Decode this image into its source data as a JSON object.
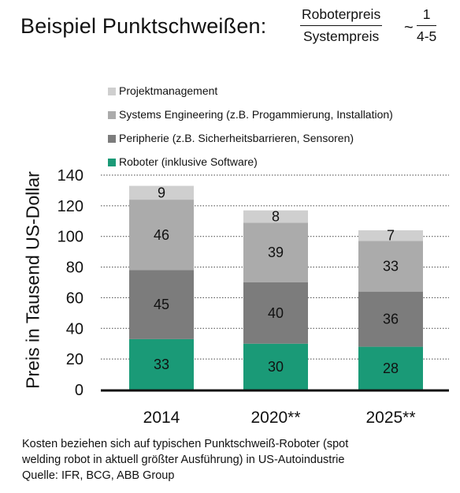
{
  "header": {
    "title": "Beispiel Punktschweißen:",
    "ratio_numerator": "Roboterpreis",
    "ratio_denominator": "Systempreis",
    "approx_symbol": "~",
    "ratio_value_numerator": "1",
    "ratio_value_denominator": "4-5"
  },
  "chart_data": {
    "type": "bar",
    "stacked": true,
    "categories": [
      "2014",
      "2020**",
      "2025**"
    ],
    "ylabel": "Preis in Tausend US-Dollar",
    "ylim": [
      0,
      140
    ],
    "yticks": [
      0,
      20,
      40,
      60,
      80,
      100,
      120,
      140
    ],
    "grid": "horizontal dotted",
    "legend_position": "top",
    "series": [
      {
        "name": "Roboter (inklusive Software)",
        "color": "#1a9a77",
        "values": [
          33,
          30,
          28
        ]
      },
      {
        "name": "Peripherie (z.B. Sicherheitsbarrieren, Sensoren)",
        "color": "#7c7c7c",
        "values": [
          45,
          40,
          36
        ]
      },
      {
        "name": "Systems Engineering (z.B. Progammierung, Installation)",
        "color": "#ababab",
        "values": [
          46,
          39,
          33
        ]
      },
      {
        "name": "Projektmanagement",
        "color": "#cfcfcf",
        "values": [
          9,
          8,
          7
        ]
      }
    ],
    "legend_order": [
      "Projektmanagement",
      "Systems Engineering (z.B. Progammierung, Installation)",
      "Peripherie (z.B. Sicherheitsbarrieren, Sensoren)",
      "Roboter (inklusive Software)"
    ]
  },
  "footer": {
    "line1": "Kosten beziehen sich auf typischen Punktschweiß-Roboter (spot",
    "line2": "welding robot in aktuell größter Ausführung) in US-Autoindustrie",
    "line3": "Quelle: IFR, BCG, ABB Group"
  }
}
